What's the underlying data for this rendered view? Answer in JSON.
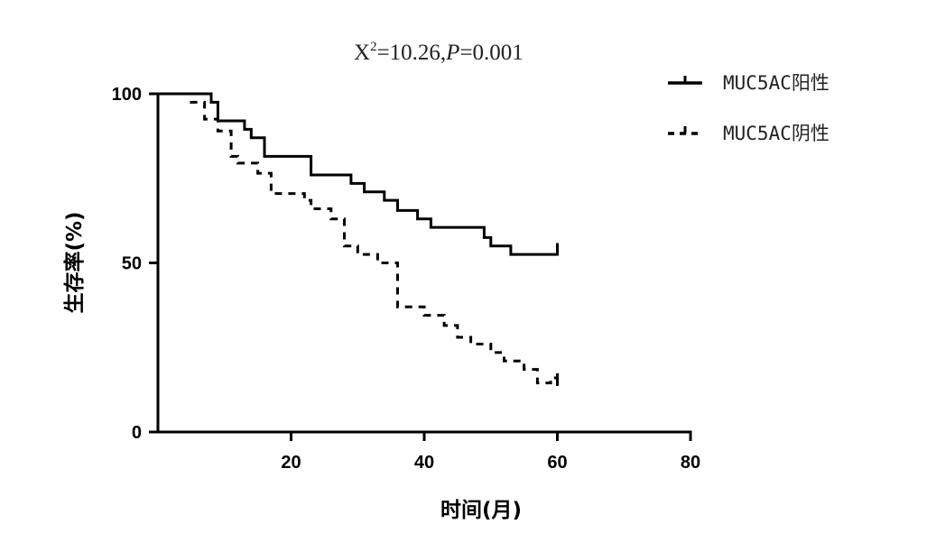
{
  "chart_data": {
    "type": "line",
    "step": true,
    "title": {
      "prefix": "X",
      "superscript": "2",
      "stat_part": "=10.26,",
      "p_label": "P",
      "p_part": "=0.001"
    },
    "xlabel": "时间(月)",
    "ylabel": "生存率(%)",
    "xlim": [
      0,
      80
    ],
    "ylim": [
      0,
      100
    ],
    "xticks": [
      20,
      40,
      60,
      80
    ],
    "yticks": [
      0,
      50,
      100
    ],
    "legend_position": "top-right",
    "grid": false,
    "series": [
      {
        "name": "MUC5AC阳性",
        "style": "solid",
        "color": "#000000",
        "points": [
          [
            0,
            100
          ],
          [
            8,
            100
          ],
          [
            8,
            97.5
          ],
          [
            9,
            97.5
          ],
          [
            9,
            92
          ],
          [
            13,
            92
          ],
          [
            13,
            89.5
          ],
          [
            14,
            89.5
          ],
          [
            14,
            87
          ],
          [
            16,
            87
          ],
          [
            16,
            81.5
          ],
          [
            23,
            81.5
          ],
          [
            23,
            76
          ],
          [
            29,
            76
          ],
          [
            29,
            73.5
          ],
          [
            31,
            73.5
          ],
          [
            31,
            71
          ],
          [
            34,
            71
          ],
          [
            34,
            68.5
          ],
          [
            36,
            68.5
          ],
          [
            36,
            65.5
          ],
          [
            39,
            65.5
          ],
          [
            39,
            63
          ],
          [
            41,
            63
          ],
          [
            41,
            60.5
          ],
          [
            49,
            60.5
          ],
          [
            49,
            57.5
          ],
          [
            50,
            57.5
          ],
          [
            50,
            55
          ],
          [
            53,
            55
          ],
          [
            53,
            52.5
          ],
          [
            60,
            52.5
          ]
        ],
        "censored": [
          [
            60,
            54
          ]
        ]
      },
      {
        "name": "MUC5AC阴性",
        "style": "dashed",
        "color": "#000000",
        "points": [
          [
            0,
            100
          ],
          [
            5,
            100
          ],
          [
            5,
            97.5
          ],
          [
            7,
            97.5
          ],
          [
            7,
            92.5
          ],
          [
            9,
            92.5
          ],
          [
            9,
            89
          ],
          [
            11,
            89
          ],
          [
            11,
            81.5
          ],
          [
            12,
            81.5
          ],
          [
            12,
            79.5
          ],
          [
            15,
            79.5
          ],
          [
            15,
            76.5
          ],
          [
            17,
            76.5
          ],
          [
            17,
            70.5
          ],
          [
            22,
            70.5
          ],
          [
            22,
            68.5
          ],
          [
            23,
            68.5
          ],
          [
            23,
            66
          ],
          [
            26,
            66
          ],
          [
            26,
            63
          ],
          [
            28,
            63
          ],
          [
            28,
            55
          ],
          [
            30,
            55
          ],
          [
            30,
            52.5
          ],
          [
            33,
            52.5
          ],
          [
            33,
            50
          ],
          [
            36,
            50
          ],
          [
            36,
            37
          ],
          [
            40,
            37
          ],
          [
            40,
            34.5
          ],
          [
            43,
            34.5
          ],
          [
            43,
            31.5
          ],
          [
            45,
            31.5
          ],
          [
            45,
            28
          ],
          [
            47,
            28
          ],
          [
            47,
            26
          ],
          [
            50,
            26
          ],
          [
            50,
            23.5
          ],
          [
            52,
            23.5
          ],
          [
            52,
            21
          ],
          [
            55,
            21
          ],
          [
            55,
            18.5
          ],
          [
            57,
            18.5
          ],
          [
            57,
            14.5
          ],
          [
            59,
            14.5
          ],
          [
            59,
            16
          ],
          [
            60,
            16
          ]
        ],
        "censored": [
          [
            60,
            15.5
          ]
        ]
      }
    ]
  }
}
